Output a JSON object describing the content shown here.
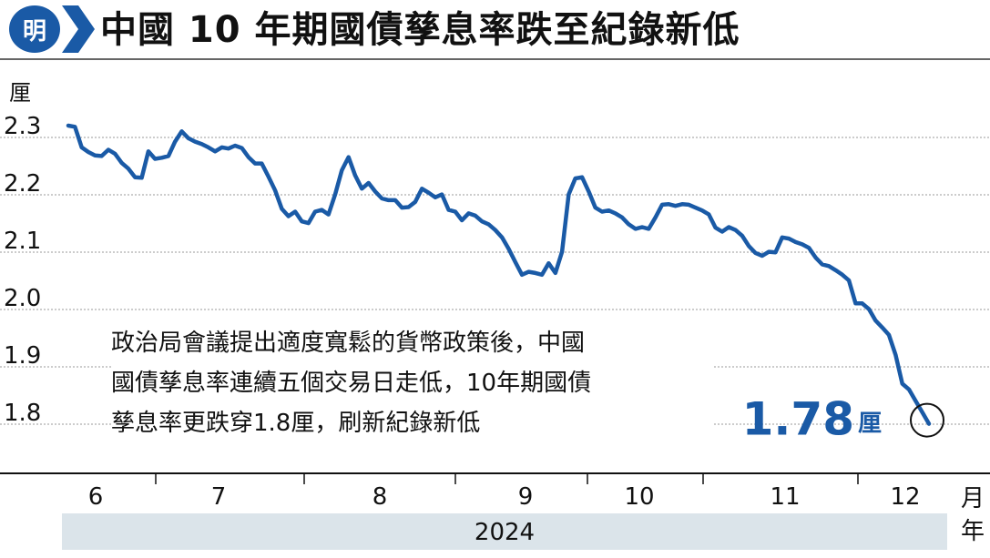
{
  "header": {
    "logo_char": "明",
    "title": "中國 10 年期國債孳息率跌至紀錄新低"
  },
  "chart_data": {
    "type": "line",
    "ylabel": "厘",
    "yticks": [
      "2.3",
      "2.2",
      "2.1",
      "2.0",
      "1.9",
      "1.8"
    ],
    "ylim": [
      1.75,
      2.3
    ],
    "xlabel": "月",
    "xlabel_year": "年",
    "month_labels": [
      "6",
      "7",
      "8",
      "9",
      "10",
      "11",
      "12"
    ],
    "year_label": "2024",
    "grid": true,
    "series": [
      {
        "color": "#1a5aa6",
        "values": [
          2.3,
          2.298,
          2.262,
          2.254,
          2.248,
          2.247,
          2.258,
          2.251,
          2.235,
          2.225,
          2.21,
          2.209,
          2.255,
          2.242,
          2.244,
          2.247,
          2.272,
          2.29,
          2.278,
          2.272,
          2.268,
          2.262,
          2.255,
          2.262,
          2.26,
          2.265,
          2.261,
          2.245,
          2.234,
          2.234,
          2.211,
          2.187,
          2.155,
          2.142,
          2.15,
          2.133,
          2.13,
          2.15,
          2.153,
          2.145,
          2.18,
          2.222,
          2.245,
          2.213,
          2.19,
          2.2,
          2.185,
          2.173,
          2.17,
          2.17,
          2.157,
          2.158,
          2.167,
          2.19,
          2.183,
          2.175,
          2.18,
          2.153,
          2.15,
          2.135,
          2.147,
          2.143,
          2.133,
          2.128,
          2.118,
          2.105,
          2.085,
          2.062,
          2.04,
          2.045,
          2.043,
          2.04,
          2.06,
          2.043,
          2.08,
          2.18,
          2.208,
          2.21,
          2.185,
          2.157,
          2.15,
          2.152,
          2.147,
          2.14,
          2.128,
          2.12,
          2.123,
          2.12,
          2.14,
          2.162,
          2.163,
          2.16,
          2.163,
          2.162,
          2.157,
          2.152,
          2.145,
          2.122,
          2.115,
          2.123,
          2.118,
          2.108,
          2.09,
          2.078,
          2.073,
          2.08,
          2.079,
          2.105,
          2.103,
          2.097,
          2.093,
          2.087,
          2.07,
          2.058,
          2.055,
          2.048,
          2.04,
          2.03,
          1.99,
          1.99,
          1.98,
          1.96,
          1.948,
          1.935,
          1.9,
          1.85,
          1.84,
          1.82,
          1.8,
          1.78
        ]
      }
    ],
    "end_value_label": "1.78",
    "end_value_unit": "厘"
  },
  "annotation": {
    "lines": [
      "政治局會議提出適度寬鬆的貨幣政策後，中國",
      "國債孳息率連續五個交易日走低，10年期國債",
      "孳息率更跌穿1.8厘，刷新紀錄新低"
    ]
  }
}
